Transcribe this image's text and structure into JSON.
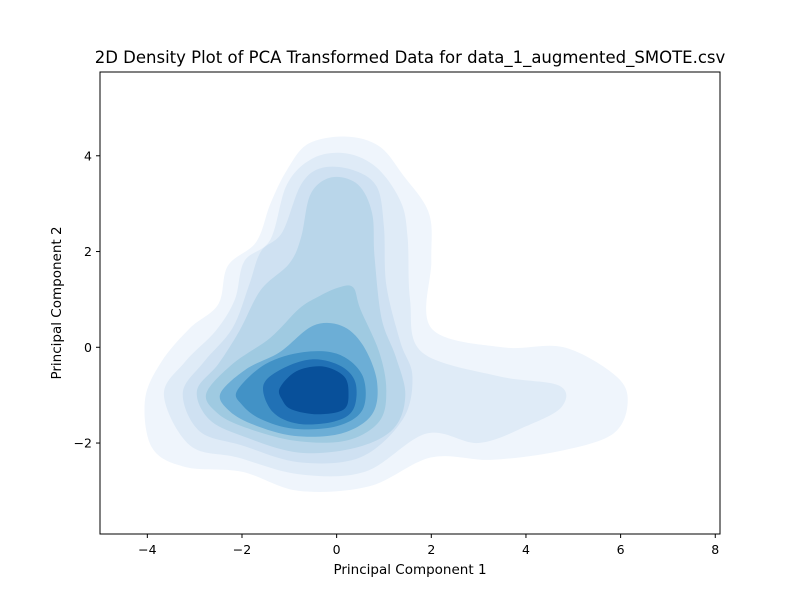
{
  "chart_data": {
    "type": "heatmap",
    "subtype": "2d-kde-filled-contour",
    "title": "2D Density Plot of PCA Transformed Data for data_1_augmented_SMOTE.csv",
    "xlabel": "Principal Component 1",
    "ylabel": "Principal Component 2",
    "xlim": [
      -5.0,
      8.1
    ],
    "ylim": [
      -3.9,
      5.75
    ],
    "xticks": [
      -4,
      -2,
      0,
      2,
      4,
      6,
      8
    ],
    "yticks": [
      -2,
      0,
      2,
      4
    ],
    "xtick_labels": [
      "−4",
      "−2",
      "0",
      "2",
      "4",
      "6",
      "8"
    ],
    "ytick_labels": [
      "−2",
      "0",
      "2",
      "4"
    ],
    "grid": false,
    "legend": "none",
    "colormap": "Blues",
    "level_colors": [
      "#eff5fc",
      "#dfebf7",
      "#cfe1f2",
      "#b9d6ea",
      "#9fcae1",
      "#6caed6",
      "#4292c6",
      "#2171b5",
      "#08509a"
    ],
    "density_levels": [
      {
        "level": 1,
        "polygon": [
          [
            -4.05,
            -1.1
          ],
          [
            -3.7,
            -0.3
          ],
          [
            -3.1,
            0.4
          ],
          [
            -2.5,
            0.9
          ],
          [
            -2.3,
            1.7
          ],
          [
            -1.7,
            2.2
          ],
          [
            -1.4,
            3.0
          ],
          [
            -1.05,
            3.7
          ],
          [
            -0.6,
            4.25
          ],
          [
            0.2,
            4.4
          ],
          [
            0.9,
            4.2
          ],
          [
            1.4,
            3.6
          ],
          [
            1.95,
            2.8
          ],
          [
            2.0,
            1.8
          ],
          [
            2.0,
            0.4
          ],
          [
            3.5,
            0.0
          ],
          [
            4.8,
            0.0
          ],
          [
            5.9,
            -0.6
          ],
          [
            6.15,
            -1.15
          ],
          [
            5.85,
            -1.8
          ],
          [
            4.8,
            -2.15
          ],
          [
            3.3,
            -2.35
          ],
          [
            2.0,
            -2.3
          ],
          [
            0.7,
            -2.9
          ],
          [
            -0.8,
            -3.0
          ],
          [
            -2.0,
            -2.6
          ],
          [
            -3.2,
            -2.5
          ],
          [
            -3.9,
            -2.1
          ]
        ]
      },
      {
        "level": 2,
        "polygon": [
          [
            -3.65,
            -1.0
          ],
          [
            -3.2,
            -0.3
          ],
          [
            -2.55,
            0.35
          ],
          [
            -2.15,
            1.0
          ],
          [
            -1.95,
            1.8
          ],
          [
            -1.4,
            2.25
          ],
          [
            -1.05,
            3.4
          ],
          [
            -0.5,
            3.95
          ],
          [
            0.2,
            4.05
          ],
          [
            0.85,
            3.75
          ],
          [
            1.35,
            3.05
          ],
          [
            1.5,
            2.3
          ],
          [
            1.55,
            1.0
          ],
          [
            1.8,
            -0.1
          ],
          [
            3.4,
            -0.6
          ],
          [
            4.7,
            -0.8
          ],
          [
            4.75,
            -1.25
          ],
          [
            4.0,
            -1.65
          ],
          [
            3.0,
            -2.0
          ],
          [
            1.9,
            -1.8
          ],
          [
            0.6,
            -2.6
          ],
          [
            -0.8,
            -2.65
          ],
          [
            -2.1,
            -2.3
          ],
          [
            -3.1,
            -2.05
          ]
        ]
      },
      {
        "level": 3,
        "polygon": [
          [
            -3.25,
            -0.95
          ],
          [
            -2.8,
            -0.3
          ],
          [
            -2.2,
            0.4
          ],
          [
            -1.85,
            1.3
          ],
          [
            -1.6,
            2.0
          ],
          [
            -1.15,
            2.4
          ],
          [
            -0.75,
            3.4
          ],
          [
            -0.3,
            3.75
          ],
          [
            0.35,
            3.7
          ],
          [
            0.85,
            3.35
          ],
          [
            1.0,
            2.5
          ],
          [
            1.05,
            1.3
          ],
          [
            1.35,
            0.1
          ],
          [
            1.6,
            -0.6
          ],
          [
            1.4,
            -1.5
          ],
          [
            0.5,
            -2.3
          ],
          [
            -0.8,
            -2.4
          ],
          [
            -2.0,
            -2.05
          ],
          [
            -2.9,
            -1.75
          ]
        ]
      },
      {
        "level": 4,
        "polygon": [
          [
            -2.95,
            -0.9
          ],
          [
            -2.5,
            -0.35
          ],
          [
            -2.05,
            0.35
          ],
          [
            -1.6,
            1.2
          ],
          [
            -1.0,
            1.75
          ],
          [
            -0.75,
            2.3
          ],
          [
            -0.55,
            3.2
          ],
          [
            -0.1,
            3.55
          ],
          [
            0.45,
            3.4
          ],
          [
            0.75,
            2.8
          ],
          [
            0.8,
            1.9
          ],
          [
            0.95,
            0.6
          ],
          [
            1.25,
            -0.2
          ],
          [
            1.45,
            -1.0
          ],
          [
            1.2,
            -1.7
          ],
          [
            0.4,
            -2.1
          ],
          [
            -0.8,
            -2.2
          ],
          [
            -2.0,
            -1.85
          ],
          [
            -2.7,
            -1.5
          ]
        ]
      },
      {
        "level": 5,
        "polygon": [
          [
            -2.75,
            -0.95
          ],
          [
            -2.2,
            -0.35
          ],
          [
            -1.4,
            0.2
          ],
          [
            -0.8,
            0.8
          ],
          [
            -0.4,
            1.05
          ],
          [
            0.05,
            1.25
          ],
          [
            0.35,
            1.25
          ],
          [
            0.5,
            0.8
          ],
          [
            0.9,
            -0.1
          ],
          [
            1.05,
            -0.9
          ],
          [
            0.9,
            -1.55
          ],
          [
            0.2,
            -1.95
          ],
          [
            -0.9,
            -1.95
          ],
          [
            -2.0,
            -1.65
          ],
          [
            -2.55,
            -1.35
          ]
        ]
      },
      {
        "level": 6,
        "polygon": [
          [
            -2.45,
            -0.95
          ],
          [
            -1.9,
            -0.45
          ],
          [
            -1.2,
            -0.1
          ],
          [
            -0.5,
            0.45
          ],
          [
            0.1,
            0.45
          ],
          [
            0.55,
            0.05
          ],
          [
            0.85,
            -0.7
          ],
          [
            0.75,
            -1.4
          ],
          [
            0.1,
            -1.8
          ],
          [
            -0.9,
            -1.85
          ],
          [
            -1.8,
            -1.6
          ],
          [
            -2.3,
            -1.3
          ]
        ]
      },
      {
        "level": 7,
        "polygon": [
          [
            -2.1,
            -0.9
          ],
          [
            -1.5,
            -0.35
          ],
          [
            -0.7,
            -0.1
          ],
          [
            0.05,
            -0.15
          ],
          [
            0.55,
            -0.6
          ],
          [
            0.55,
            -1.3
          ],
          [
            0.0,
            -1.65
          ],
          [
            -0.9,
            -1.7
          ],
          [
            -1.6,
            -1.5
          ],
          [
            -2.0,
            -1.2
          ]
        ]
      },
      {
        "level": 8,
        "polygon": [
          [
            -1.55,
            -0.8
          ],
          [
            -1.15,
            -0.45
          ],
          [
            -0.5,
            -0.25
          ],
          [
            0.1,
            -0.4
          ],
          [
            0.4,
            -0.75
          ],
          [
            0.35,
            -1.3
          ],
          [
            -0.05,
            -1.55
          ],
          [
            -0.8,
            -1.6
          ],
          [
            -1.35,
            -1.35
          ]
        ]
      },
      {
        "level": 9,
        "polygon": [
          [
            -1.2,
            -0.85
          ],
          [
            -0.85,
            -0.5
          ],
          [
            -0.3,
            -0.4
          ],
          [
            0.15,
            -0.6
          ],
          [
            0.25,
            -0.95
          ],
          [
            0.15,
            -1.3
          ],
          [
            -0.4,
            -1.4
          ],
          [
            -0.95,
            -1.3
          ],
          [
            -1.15,
            -1.1
          ]
        ]
      }
    ]
  }
}
